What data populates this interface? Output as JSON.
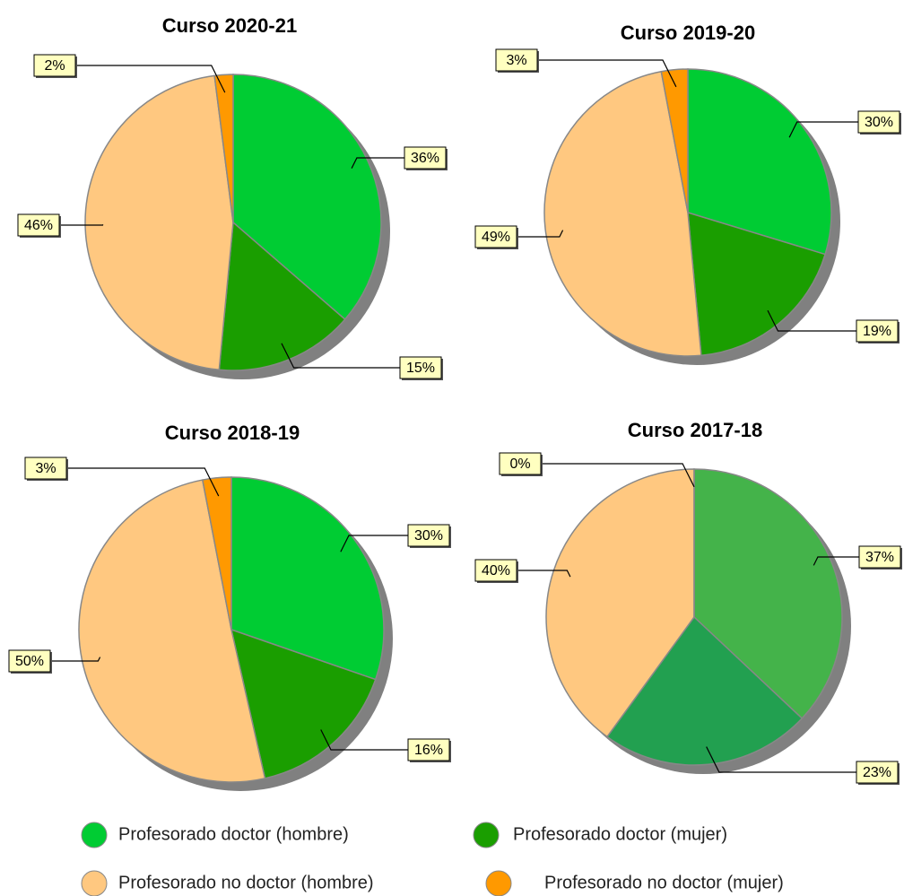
{
  "chart_data": [
    {
      "type": "pie",
      "title": "Curso 2020-21",
      "values": [
        36,
        15,
        46,
        2
      ],
      "value_labels": [
        "36%",
        "15%",
        "46%",
        "2%"
      ],
      "colors": [
        "#00cc33",
        "#1a9e00",
        "#ffc880",
        "#ff9900"
      ]
    },
    {
      "type": "pie",
      "title": "Curso 2019-20",
      "values": [
        30,
        19,
        49,
        3
      ],
      "value_labels": [
        "30%",
        "19%",
        "49%",
        "3%"
      ],
      "colors": [
        "#00cc33",
        "#1a9e00",
        "#ffc880",
        "#ff9900"
      ]
    },
    {
      "type": "pie",
      "title": "Curso 2018-19",
      "values": [
        30,
        16,
        50,
        3
      ],
      "value_labels": [
        "30%",
        "16%",
        "50%",
        "3%"
      ],
      "colors": [
        "#00cc33",
        "#1a9e00",
        "#ffc880",
        "#ff9900"
      ]
    },
    {
      "type": "pie",
      "title": "Curso 2017-18",
      "values": [
        37,
        23,
        40,
        0
      ],
      "value_labels": [
        "37%",
        "23%",
        "40%",
        "0%"
      ],
      "colors": [
        "#44b34a",
        "#22a050",
        "#ffc880",
        "#ff9900"
      ]
    }
  ],
  "legend": {
    "items": [
      {
        "name": "Profesorado doctor (hombre)",
        "color": "#00cc33"
      },
      {
        "name": "Profesorado doctor (mujer)",
        "color": "#1a9e00"
      },
      {
        "name": "Profesorado no doctor (hombre)",
        "color": "#ffc880"
      },
      {
        "name": "Profesorado no doctor (mujer)",
        "color": "#ff9900"
      }
    ]
  }
}
